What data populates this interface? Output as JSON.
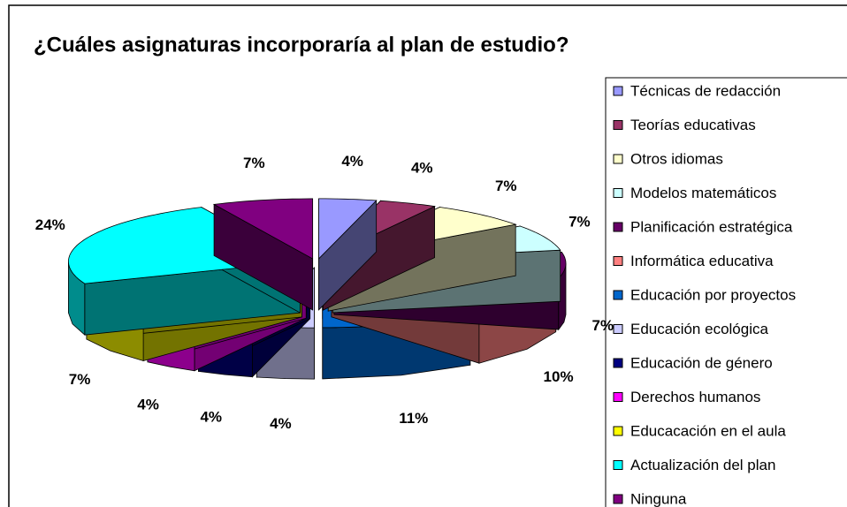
{
  "chart_data": {
    "type": "pie3d",
    "title": "¿Cuáles asignaturas incorporaría al plan de estudio?",
    "categories": [
      "Técnicas de redacción",
      "Teorías educativas",
      "Otros idiomas",
      "Modelos matemáticos",
      "Planificación estratégica",
      "Informática educativa",
      "Educación por proyectos",
      "Educación ecológica",
      "Educación de género",
      "Derechos humanos",
      "Educacación en el aula",
      "Actualización del plan",
      "Ninguna"
    ],
    "values": [
      4,
      4,
      7,
      7,
      7,
      10,
      11,
      4,
      4,
      4,
      7,
      24,
      7
    ],
    "value_labels": [
      "4%",
      "4%",
      "7%",
      "7%",
      "7%",
      "10%",
      "11%",
      "4%",
      "4%",
      "4%",
      "7%",
      "24%",
      "7%"
    ],
    "colors": [
      "#9999ff",
      "#993366",
      "#ffffcc",
      "#ccffff",
      "#660066",
      "#ff8080",
      "#0066cc",
      "#ccccff",
      "#000080",
      "#ff00ff",
      "#ffff00",
      "#00ffff",
      "#800080"
    ],
    "legend": "right"
  }
}
